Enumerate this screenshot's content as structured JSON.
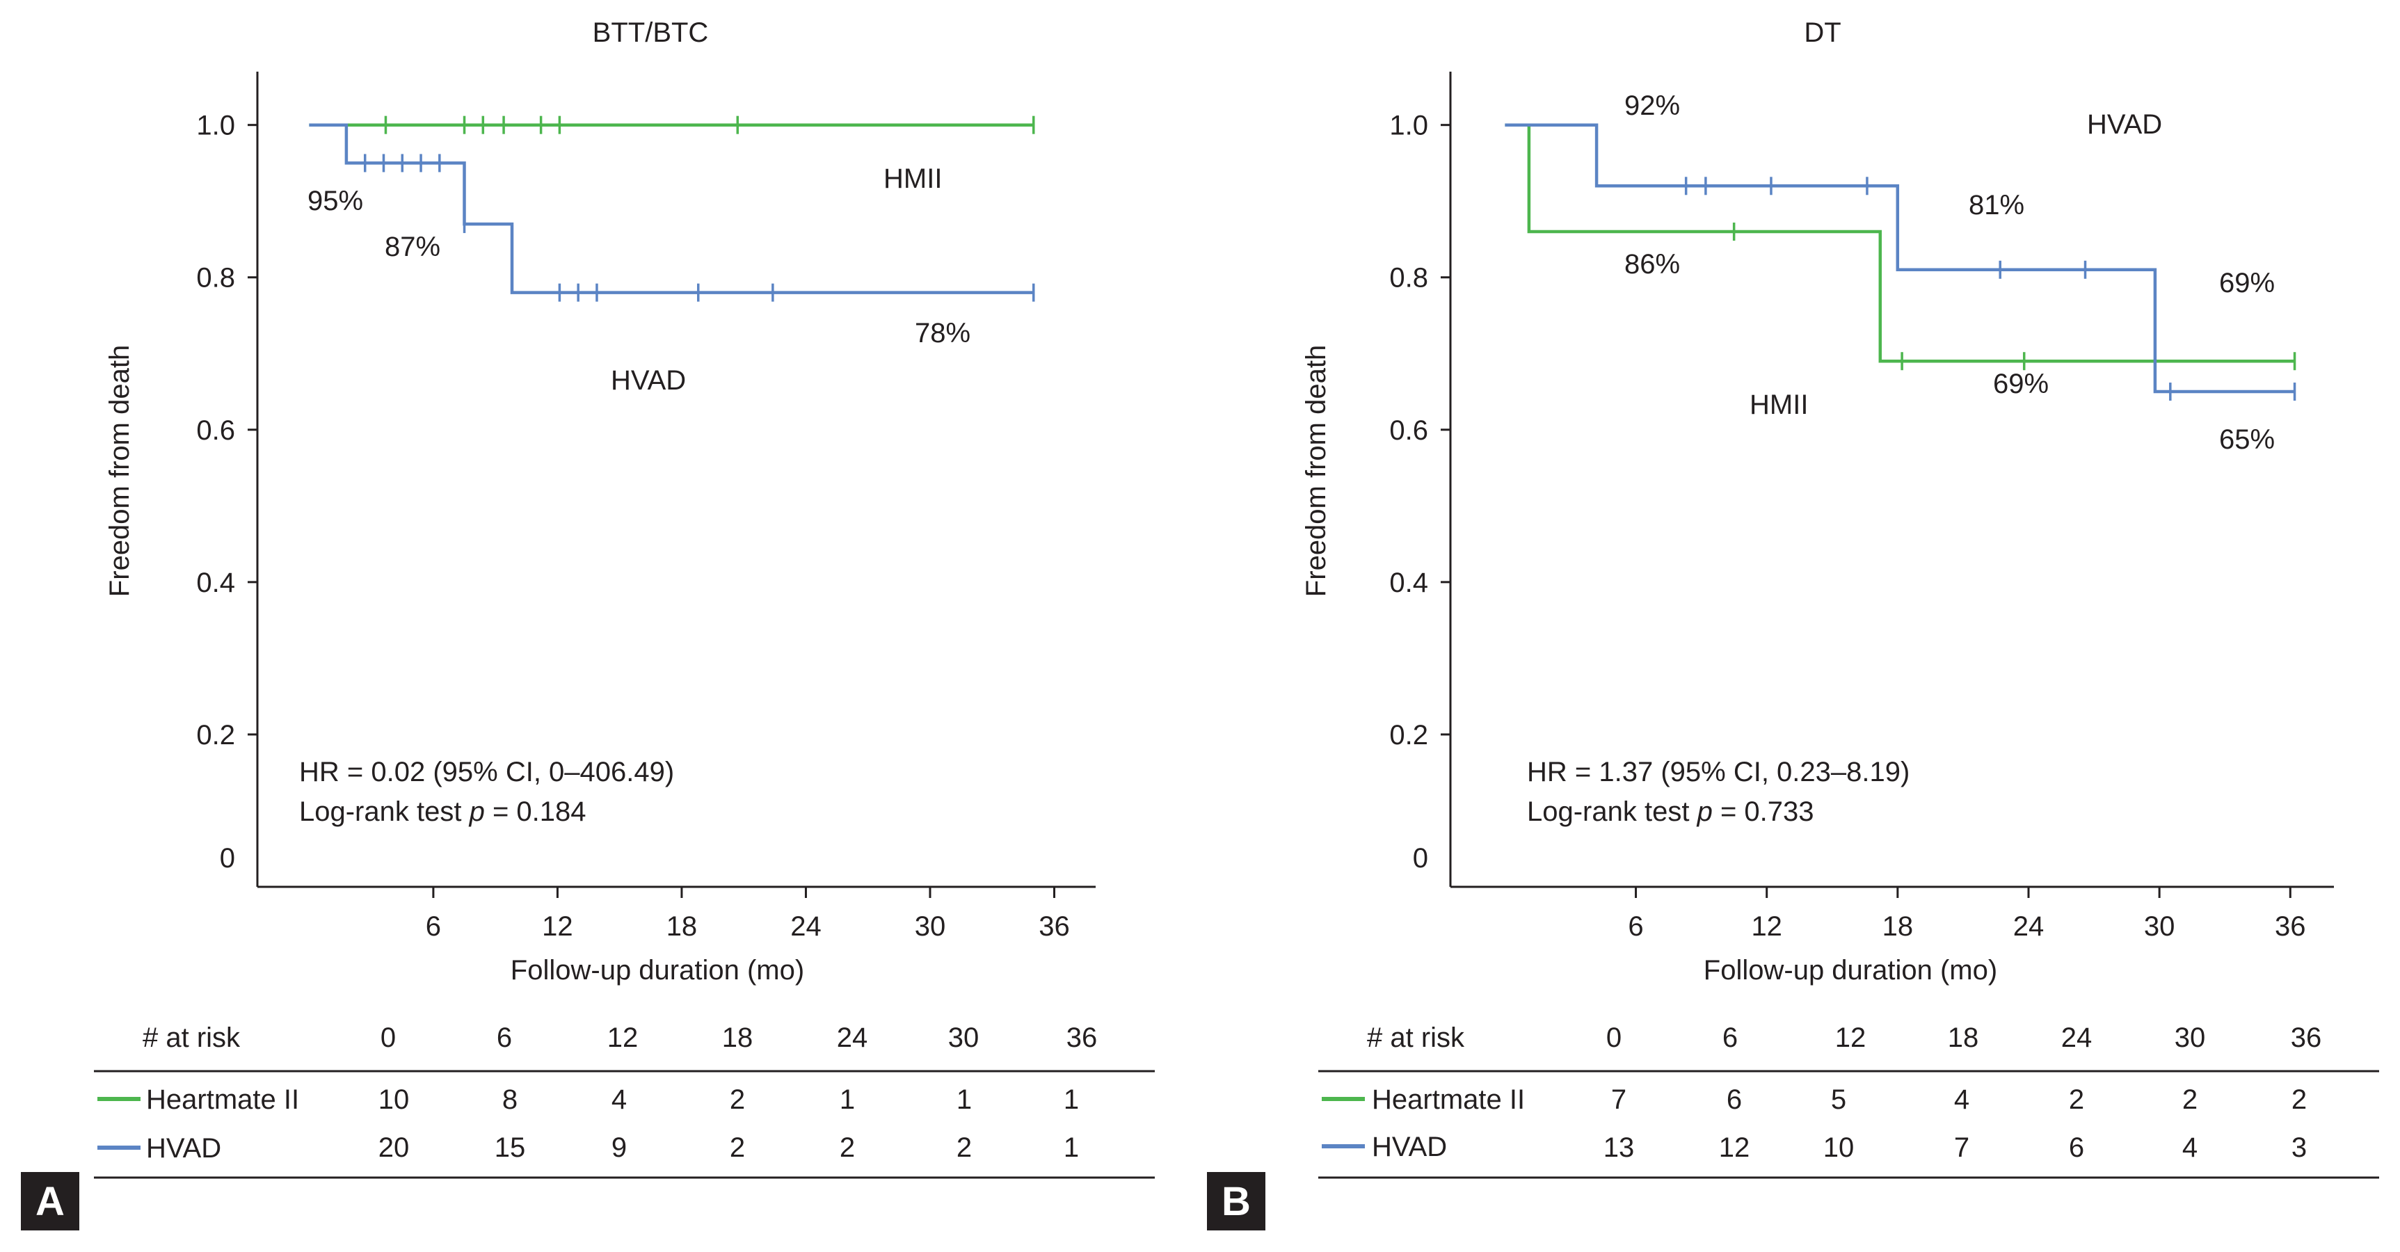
{
  "figure": {
    "colors": {
      "hmii": "#4db64e",
      "hvad": "#5b84c4",
      "axis": "#231f20",
      "badge_bg": "#231f20",
      "badge_text": "#ffffff"
    }
  },
  "chart_data": [
    {
      "panel_label": "A",
      "type": "line",
      "subtype": "kaplan-meier",
      "title": "BTT/BTC",
      "xlabel": "Follow-up duration (mo)",
      "ylabel": "Freedom from death",
      "xlim": [
        -2.5,
        38
      ],
      "ylim": [
        0,
        1.07
      ],
      "xticks": [
        "6",
        "12",
        "18",
        "24",
        "30",
        "36"
      ],
      "yticks": [
        "0",
        "0.2",
        "0.4",
        "0.6",
        "0.8",
        "1.0"
      ],
      "grid": false,
      "series": [
        {
          "key": "hmii",
          "name": "HMII",
          "color": "#4db64e",
          "steps": [
            [
              0,
              1.0
            ],
            [
              35,
              1.0
            ]
          ],
          "censored": [
            [
              3.7,
              1.0
            ],
            [
              7.5,
              1.0
            ],
            [
              8.4,
              1.0
            ],
            [
              9.4,
              1.0
            ],
            [
              11.2,
              1.0
            ],
            [
              12.1,
              1.0
            ],
            [
              20.7,
              1.0
            ],
            [
              35,
              1.0
            ]
          ]
        },
        {
          "key": "hvad",
          "name": "HVAD",
          "color": "#5b84c4",
          "steps": [
            [
              0,
              1.0
            ],
            [
              1.8,
              1.0
            ],
            [
              1.8,
              0.95
            ],
            [
              7.5,
              0.95
            ],
            [
              7.5,
              0.87
            ],
            [
              9.8,
              0.87
            ],
            [
              9.8,
              0.78
            ],
            [
              35,
              0.78
            ]
          ],
          "censored": [
            [
              2.7,
              0.95
            ],
            [
              3.6,
              0.95
            ],
            [
              4.5,
              0.95
            ],
            [
              5.4,
              0.95
            ],
            [
              6.3,
              0.95
            ],
            [
              7.5,
              0.87
            ],
            [
              12.1,
              0.78
            ],
            [
              13.0,
              0.78
            ],
            [
              13.9,
              0.78
            ],
            [
              18.8,
              0.78
            ],
            [
              22.4,
              0.78
            ],
            [
              35,
              0.78
            ]
          ]
        }
      ],
      "annotations": {
        "hmii_label": "HMII",
        "hvad_label": "HVAD",
        "pct_1": "95%",
        "pct_2": "87%",
        "pct_3": "78%"
      },
      "stats": {
        "hr_text": "HR = 0.02 (95% CI, 0–406.49)",
        "logrank_prefix": "Log-rank test ",
        "p_symbol": "p",
        "p_value_text": " = 0.184"
      },
      "risk_table": {
        "header_label": "# at risk",
        "times": [
          "0",
          "6",
          "12",
          "18",
          "24",
          "30",
          "36"
        ],
        "rows": [
          {
            "key": "hmii",
            "label": "Heartmate II",
            "values": [
              "10",
              "8",
              "4",
              "2",
              "1",
              "1",
              "1"
            ]
          },
          {
            "key": "hvad",
            "label": "HVAD",
            "values": [
              "20",
              "15",
              "9",
              "2",
              "2",
              "2",
              "1"
            ]
          }
        ]
      }
    },
    {
      "panel_label": "B",
      "type": "line",
      "subtype": "kaplan-meier",
      "title": "DT",
      "xlabel": "Follow-up duration (mo)",
      "ylabel": "Freedom from death",
      "xlim": [
        -2.5,
        38
      ],
      "ylim": [
        0,
        1.07
      ],
      "xticks": [
        "6",
        "12",
        "18",
        "24",
        "30",
        "36"
      ],
      "yticks": [
        "0",
        "0.2",
        "0.4",
        "0.6",
        "0.8",
        "1.0"
      ],
      "grid": false,
      "series": [
        {
          "key": "hmii",
          "name": "HMII",
          "color": "#4db64e",
          "steps": [
            [
              0,
              1.0
            ],
            [
              1.1,
              1.0
            ],
            [
              1.1,
              0.86
            ],
            [
              17.2,
              0.86
            ],
            [
              17.2,
              0.69
            ],
            [
              36.2,
              0.69
            ]
          ],
          "censored": [
            [
              10.5,
              0.86
            ],
            [
              18.2,
              0.69
            ],
            [
              23.8,
              0.69
            ],
            [
              36.2,
              0.69
            ]
          ]
        },
        {
          "key": "hvad",
          "name": "HVAD",
          "color": "#5b84c4",
          "steps": [
            [
              0,
              1.0
            ],
            [
              4.2,
              1.0
            ],
            [
              4.2,
              0.92
            ],
            [
              18.0,
              0.92
            ],
            [
              18.0,
              0.81
            ],
            [
              29.8,
              0.81
            ],
            [
              29.8,
              0.65
            ],
            [
              36.2,
              0.65
            ]
          ],
          "censored": [
            [
              8.3,
              0.92
            ],
            [
              9.2,
              0.92
            ],
            [
              12.2,
              0.92
            ],
            [
              16.6,
              0.92
            ],
            [
              22.7,
              0.81
            ],
            [
              26.6,
              0.81
            ],
            [
              30.5,
              0.65
            ],
            [
              36.2,
              0.65
            ]
          ]
        }
      ],
      "annotations": {
        "hmii_label": "HMII",
        "hvad_label": "HVAD",
        "pct_1": "92%",
        "pct_2": "86%",
        "pct_3": "81%",
        "pct_4": "69%",
        "pct_5": "69%",
        "pct_6": "65%"
      },
      "stats": {
        "hr_text": "HR = 1.37 (95% CI, 0.23–8.19)",
        "logrank_prefix": "Log-rank test ",
        "p_symbol": "p",
        "p_value_text": " = 0.733"
      },
      "risk_table": {
        "header_label": "# at risk",
        "times": [
          "0",
          "6",
          "12",
          "18",
          "24",
          "30",
          "36"
        ],
        "rows": [
          {
            "key": "hmii",
            "label": "Heartmate II",
            "values": [
              "7",
              "6",
              "5",
              "4",
              "2",
              "2",
              "2"
            ]
          },
          {
            "key": "hvad",
            "label": "HVAD",
            "values": [
              "13",
              "12",
              "10",
              "7",
              "6",
              "4",
              "3"
            ]
          }
        ]
      }
    }
  ]
}
